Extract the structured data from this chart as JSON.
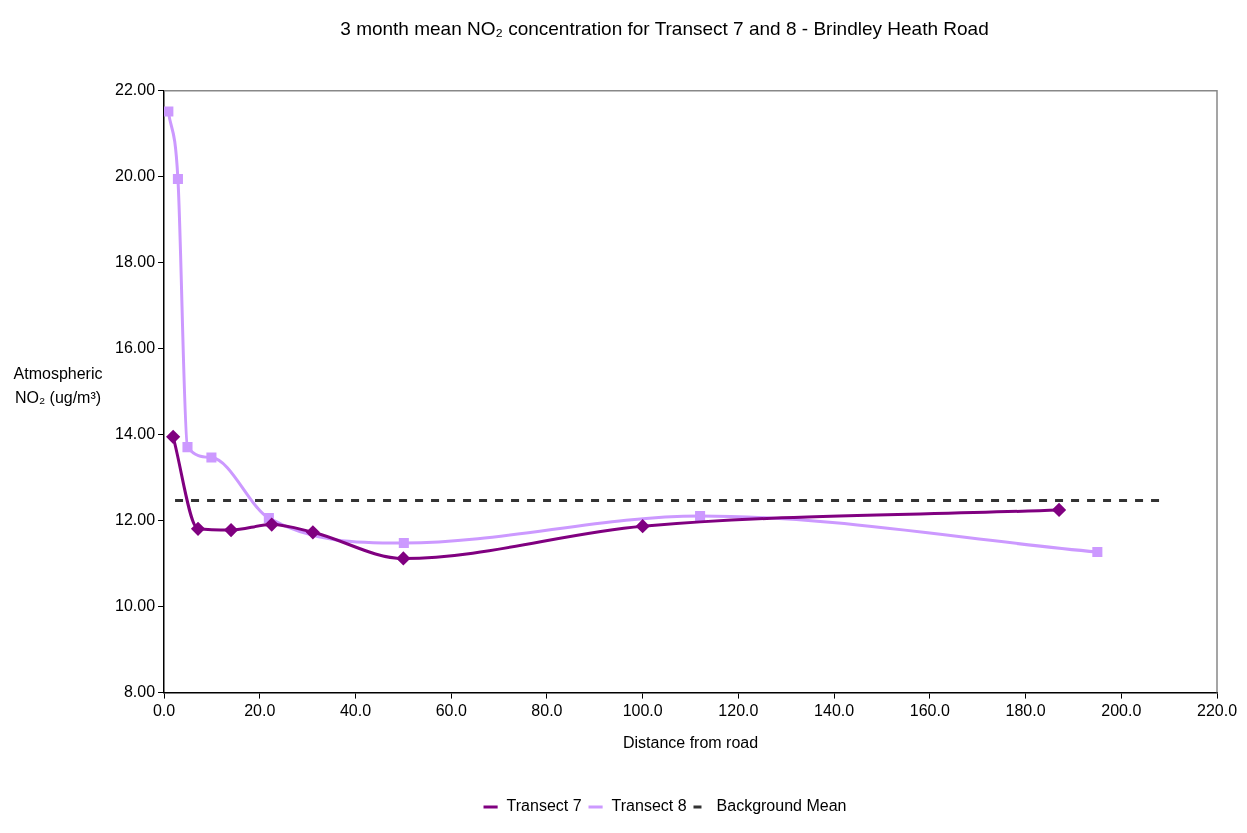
{
  "chart_data": {
    "type": "line",
    "title": "3 month mean NO₂ concentration for Transect 7 and 8 - Brindley Heath Road",
    "xlabel": "Distance from road",
    "ylabel": "Atmospheric NO₂ (ug/m³)",
    "xlim": [
      0,
      220
    ],
    "xticks": [
      {
        "value": 0,
        "label": "0.0"
      },
      {
        "value": 20,
        "label": "20.0"
      },
      {
        "value": 40,
        "label": "40.0"
      },
      {
        "value": 60,
        "label": "60.0"
      },
      {
        "value": 80,
        "label": "80.0"
      },
      {
        "value": 100,
        "label": "100.0"
      },
      {
        "value": 120,
        "label": "120.0"
      },
      {
        "value": 140,
        "label": "140.0"
      },
      {
        "value": 160,
        "label": "160.0"
      },
      {
        "value": 180,
        "label": "180.0"
      },
      {
        "value": 200,
        "label": "200.0"
      },
      {
        "value": 220,
        "label": "220.0"
      }
    ],
    "ylim": [
      8,
      22
    ],
    "yticks": [
      {
        "value": 8,
        "label": "8.00"
      },
      {
        "value": 10,
        "label": "10.00"
      },
      {
        "value": 12,
        "label": "12.00"
      },
      {
        "value": 14,
        "label": "14.00"
      },
      {
        "value": 16,
        "label": "16.00"
      },
      {
        "value": 18,
        "label": "18.00"
      },
      {
        "value": 20,
        "label": "20.00"
      },
      {
        "value": 22,
        "label": "22.00"
      }
    ],
    "grid": false,
    "legend": "bottom",
    "series": [
      {
        "name": "Transect 7",
        "color": "#800080",
        "marker": "diamond",
        "line_style": "solid",
        "x": [
          1.9,
          7.1,
          14,
          22.5,
          31.1,
          50,
          100,
          187
        ],
        "values": [
          13.95,
          11.81,
          11.78,
          11.91,
          11.73,
          11.12,
          11.87,
          12.25
        ]
      },
      {
        "name": "Transect 8",
        "color": "#cc99ff",
        "marker": "square",
        "line_style": "solid",
        "x": [
          0.9,
          2.9,
          4.9,
          9.9,
          21.9,
          50.1,
          112,
          195
        ],
        "values": [
          21.52,
          19.95,
          13.71,
          13.47,
          12.06,
          11.48,
          12.11,
          11.27
        ]
      },
      {
        "name": "Background Mean",
        "color": "#333333",
        "marker": "none",
        "line_style": "dashed",
        "x": [
          2.3,
          208
        ],
        "values": [
          12.47,
          12.47
        ]
      }
    ]
  }
}
